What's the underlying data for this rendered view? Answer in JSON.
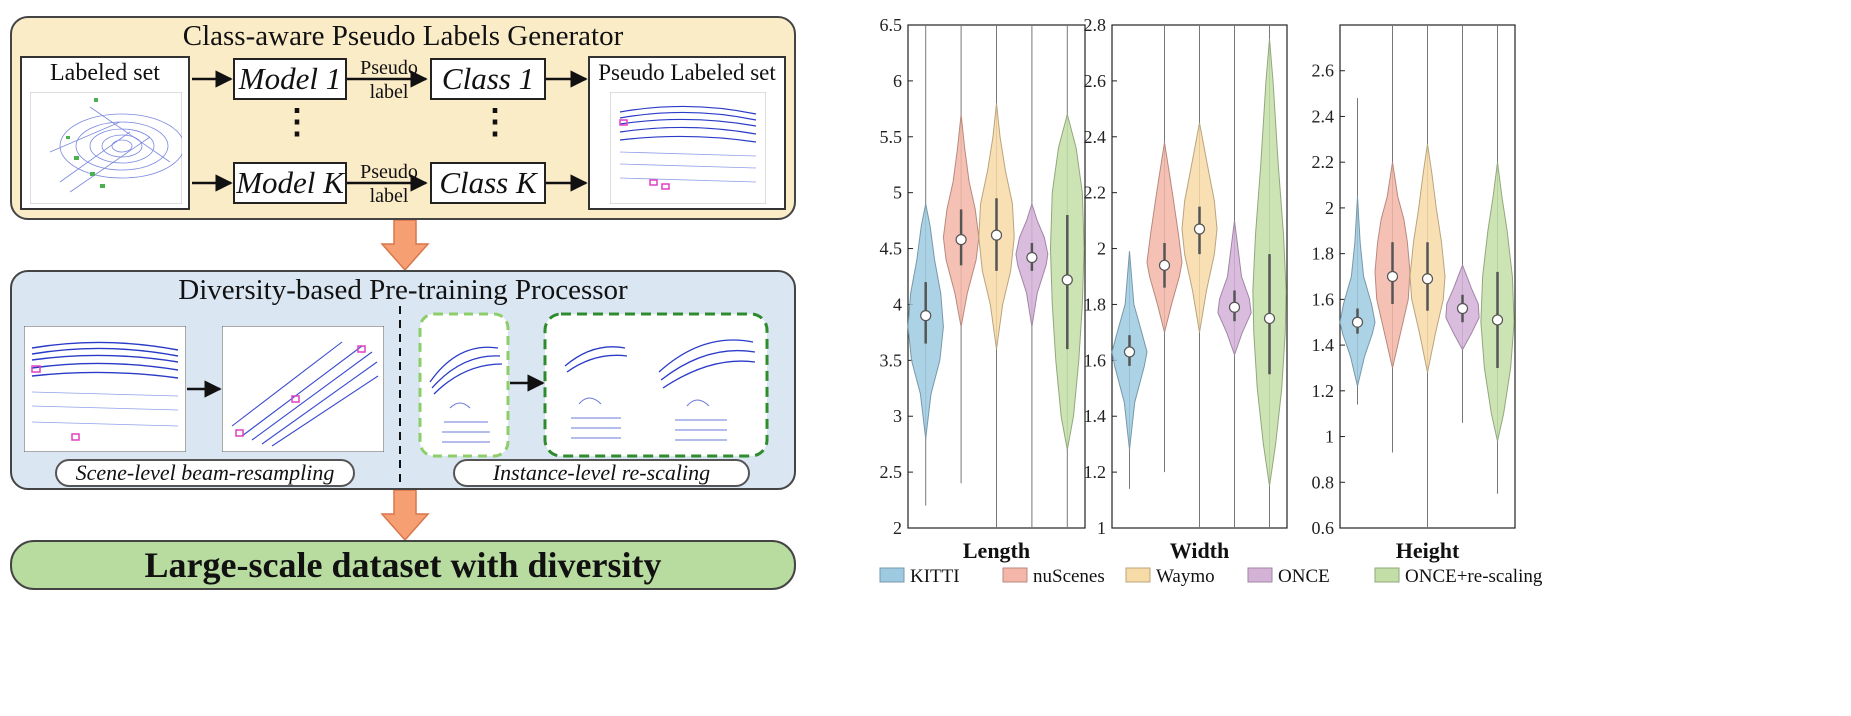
{
  "generator": {
    "title": "Class-aware Pseudo Labels Generator",
    "labeled_set": "Labeled set",
    "model_top": "Model 1",
    "model_bottom": "Model K",
    "pseudo_label": "Pseudo\nlabel",
    "class_top": "Class 1",
    "class_bottom": "Class K",
    "pseudo_labeled_set": "Pseudo Labeled set",
    "ellipsis": "⋮"
  },
  "processor": {
    "title": "Diversity-based Pre-training Processor",
    "scene_caption": "Scene-level beam-resampling",
    "instance_caption": "Instance-level re-scaling"
  },
  "result": {
    "title": "Large-scale dataset with diversity"
  },
  "chart_data": {
    "type": "violin",
    "legend": [
      {
        "name": "KITTI",
        "color": "#9ecae1"
      },
      {
        "name": "nuScenes",
        "color": "#f4b6a8"
      },
      {
        "name": "Waymo",
        "color": "#f7dba7"
      },
      {
        "name": "ONCE",
        "color": "#d4b2d8"
      },
      {
        "name": "ONCE+re-scaling",
        "color": "#c3dfa7"
      }
    ],
    "panels": [
      {
        "xlabel": "Length",
        "ylim": [
          2,
          6.5
        ],
        "yticks": [
          2,
          2.5,
          3,
          3.5,
          4,
          4.5,
          5,
          5.5,
          6,
          6.5
        ],
        "ytick_labels": [
          "2",
          "2.5",
          "3",
          "3.5",
          "4",
          "4.5",
          "5",
          "5.5",
          "6",
          "6.5"
        ],
        "series": [
          {
            "name": "KITTI",
            "median": 3.9,
            "min": 2.2,
            "max": 6.5,
            "q1": 3.65,
            "q3": 4.2,
            "profile": [
              [
                2.8,
                0.0
              ],
              [
                3.2,
                0.3
              ],
              [
                3.5,
                0.8
              ],
              [
                3.8,
                1.0
              ],
              [
                4.1,
                0.85
              ],
              [
                4.4,
                0.5
              ],
              [
                4.7,
                0.25
              ],
              [
                4.9,
                0.0
              ]
            ]
          },
          {
            "name": "nuScenes",
            "median": 4.58,
            "min": 2.4,
            "max": 6.5,
            "q1": 4.35,
            "q3": 4.85,
            "profile": [
              [
                3.8,
                0.0
              ],
              [
                4.1,
                0.35
              ],
              [
                4.4,
                0.85
              ],
              [
                4.6,
                1.0
              ],
              [
                4.85,
                0.8
              ],
              [
                5.1,
                0.45
              ],
              [
                5.4,
                0.2
              ],
              [
                5.7,
                0.0
              ]
            ]
          },
          {
            "name": "Waymo",
            "median": 4.62,
            "min": 2.0,
            "max": 6.5,
            "q1": 4.3,
            "q3": 4.95,
            "profile": [
              [
                3.6,
                0.0
              ],
              [
                4.0,
                0.35
              ],
              [
                4.3,
                0.8
              ],
              [
                4.6,
                1.0
              ],
              [
                4.9,
                0.9
              ],
              [
                5.2,
                0.5
              ],
              [
                5.5,
                0.2
              ],
              [
                5.8,
                0.0
              ]
            ]
          },
          {
            "name": "ONCE",
            "median": 4.42,
            "min": 2.0,
            "max": 6.5,
            "q1": 4.3,
            "q3": 4.55,
            "profile": [
              [
                3.8,
                0.0
              ],
              [
                4.1,
                0.3
              ],
              [
                4.35,
                0.8
              ],
              [
                4.45,
                0.9
              ],
              [
                4.6,
                0.7
              ],
              [
                4.75,
                0.3
              ],
              [
                4.9,
                0.0
              ]
            ]
          },
          {
            "name": "ONCE+re-scaling",
            "median": 4.22,
            "min": 2.0,
            "max": 6.5,
            "q1": 3.6,
            "q3": 4.8,
            "profile": [
              [
                2.7,
                0.0
              ],
              [
                3.0,
                0.35
              ],
              [
                3.5,
                0.65
              ],
              [
                4.0,
                0.85
              ],
              [
                4.5,
                0.95
              ],
              [
                5.0,
                0.85
              ],
              [
                5.4,
                0.5
              ],
              [
                5.7,
                0.0
              ]
            ]
          }
        ]
      },
      {
        "xlabel": "Width",
        "ylim": [
          1,
          2.8
        ],
        "yticks": [
          1,
          1.2,
          1.4,
          1.6,
          1.8,
          2,
          2.2,
          2.4,
          2.6,
          2.8
        ],
        "ytick_labels": [
          "1",
          "1.2",
          "1.4",
          "1.6",
          "1.8",
          "2",
          "2.2",
          "2.4",
          "2.6",
          "2.8"
        ],
        "series": [
          {
            "name": "KITTI",
            "median": 1.63,
            "min": 1.14,
            "max": 1.99,
            "q1": 1.58,
            "q3": 1.69,
            "profile": [
              [
                1.28,
                0.0
              ],
              [
                1.45,
                0.3
              ],
              [
                1.58,
                0.85
              ],
              [
                1.63,
                1.0
              ],
              [
                1.7,
                0.7
              ],
              [
                1.8,
                0.25
              ],
              [
                1.99,
                0.0
              ]
            ]
          },
          {
            "name": "nuScenes",
            "median": 1.94,
            "min": 1.2,
            "max": 2.8,
            "q1": 1.86,
            "q3": 2.02,
            "profile": [
              [
                1.7,
                0.0
              ],
              [
                1.8,
                0.4
              ],
              [
                1.9,
                0.85
              ],
              [
                1.95,
                1.0
              ],
              [
                2.05,
                0.8
              ],
              [
                2.2,
                0.45
              ],
              [
                2.38,
                0.0
              ]
            ]
          },
          {
            "name": "Waymo",
            "median": 2.07,
            "min": 1.0,
            "max": 2.8,
            "q1": 1.98,
            "q3": 2.15,
            "profile": [
              [
                1.7,
                0.0
              ],
              [
                1.85,
                0.4
              ],
              [
                1.98,
                0.85
              ],
              [
                2.07,
                1.0
              ],
              [
                2.17,
                0.85
              ],
              [
                2.3,
                0.45
              ],
              [
                2.45,
                0.0
              ]
            ]
          },
          {
            "name": "ONCE",
            "median": 1.79,
            "min": 1.0,
            "max": 2.8,
            "q1": 1.74,
            "q3": 1.85,
            "profile": [
              [
                1.62,
                0.0
              ],
              [
                1.7,
                0.45
              ],
              [
                1.77,
                0.95
              ],
              [
                1.82,
                0.85
              ],
              [
                1.9,
                0.4
              ],
              [
                2.0,
                0.2
              ],
              [
                2.1,
                0.0
              ]
            ]
          },
          {
            "name": "ONCE+re-scaling",
            "median": 1.75,
            "min": 1.0,
            "max": 2.8,
            "q1": 1.55,
            "q3": 1.98,
            "profile": [
              [
                1.15,
                0.0
              ],
              [
                1.3,
                0.35
              ],
              [
                1.5,
                0.7
              ],
              [
                1.7,
                0.9
              ],
              [
                1.85,
                0.95
              ],
              [
                2.05,
                0.8
              ],
              [
                2.3,
                0.5
              ],
              [
                2.6,
                0.2
              ],
              [
                2.75,
                0.0
              ]
            ]
          }
        ]
      },
      {
        "xlabel": "Height",
        "ylim": [
          0.6,
          2.8
        ],
        "yticks": [
          0.6,
          0.8,
          1,
          1.2,
          1.4,
          1.6,
          1.8,
          2,
          2.2,
          2.4,
          2.6
        ],
        "ytick_labels": [
          "0.6",
          "0.8",
          "1",
          "1.2",
          "1.4",
          "1.6",
          "1.8",
          "2",
          "2.2",
          "2.4",
          "2.6"
        ],
        "series": [
          {
            "name": "KITTI",
            "median": 1.5,
            "min": 1.14,
            "max": 2.48,
            "q1": 1.45,
            "q3": 1.56,
            "profile": [
              [
                1.22,
                0.0
              ],
              [
                1.35,
                0.4
              ],
              [
                1.45,
                0.85
              ],
              [
                1.5,
                1.0
              ],
              [
                1.58,
                0.8
              ],
              [
                1.7,
                0.35
              ],
              [
                1.85,
                0.15
              ],
              [
                2.05,
                0.0
              ]
            ]
          },
          {
            "name": "nuScenes",
            "median": 1.7,
            "min": 0.93,
            "max": 2.8,
            "q1": 1.58,
            "q3": 1.85,
            "profile": [
              [
                1.3,
                0.0
              ],
              [
                1.45,
                0.45
              ],
              [
                1.6,
                0.9
              ],
              [
                1.72,
                1.0
              ],
              [
                1.85,
                0.85
              ],
              [
                1.95,
                0.65
              ],
              [
                2.05,
                0.3
              ],
              [
                2.2,
                0.0
              ]
            ]
          },
          {
            "name": "Waymo",
            "median": 1.69,
            "min": 0.6,
            "max": 2.8,
            "q1": 1.55,
            "q3": 1.85,
            "profile": [
              [
                1.28,
                0.0
              ],
              [
                1.45,
                0.45
              ],
              [
                1.6,
                0.9
              ],
              [
                1.7,
                1.0
              ],
              [
                1.85,
                0.8
              ],
              [
                2.0,
                0.5
              ],
              [
                2.15,
                0.25
              ],
              [
                2.28,
                0.0
              ]
            ]
          },
          {
            "name": "ONCE",
            "median": 1.56,
            "min": 1.06,
            "max": 2.8,
            "q1": 1.5,
            "q3": 1.62,
            "profile": [
              [
                1.38,
                0.0
              ],
              [
                1.45,
                0.5
              ],
              [
                1.52,
                0.95
              ],
              [
                1.58,
                0.9
              ],
              [
                1.65,
                0.5
              ],
              [
                1.75,
                0.0
              ]
            ]
          },
          {
            "name": "ONCE+re-scaling",
            "median": 1.51,
            "min": 0.75,
            "max": 2.8,
            "q1": 1.3,
            "q3": 1.72,
            "profile": [
              [
                0.98,
                0.0
              ],
              [
                1.1,
                0.35
              ],
              [
                1.3,
                0.75
              ],
              [
                1.5,
                0.95
              ],
              [
                1.7,
                0.85
              ],
              [
                1.9,
                0.55
              ],
              [
                2.05,
                0.25
              ],
              [
                2.2,
                0.0
              ]
            ]
          }
        ]
      }
    ]
  }
}
